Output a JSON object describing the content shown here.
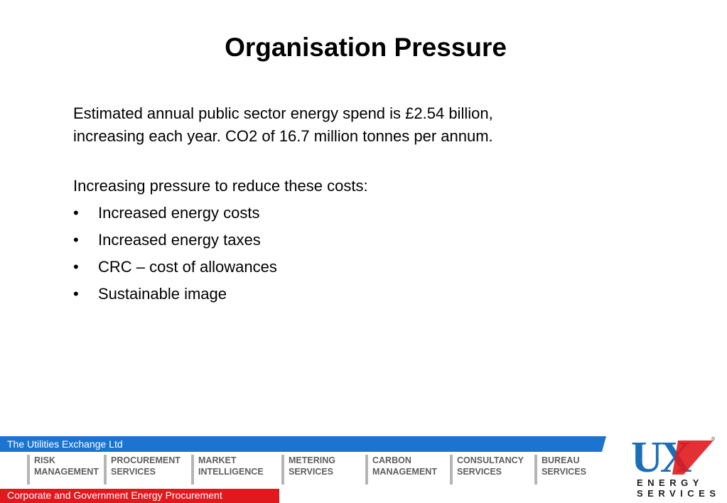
{
  "slide": {
    "title": "Organisation Pressure",
    "intro_line1": "Estimated annual public sector energy spend is £2.54 billion,",
    "intro_line2": "increasing each year. CO2 of 16.7 million tonnes per annum.",
    "lead": "Increasing pressure to reduce these costs:",
    "bullet_char": "•",
    "bullets": [
      "Increased energy costs",
      "Increased energy taxes",
      "CRC – cost of allowances",
      "Sustainable image"
    ]
  },
  "footer": {
    "company": "The Utilities Exchange Ltd",
    "tagline": "Corporate and Government Energy Procurement",
    "services": [
      {
        "line1": "RISK",
        "line2": "MANAGEMENT"
      },
      {
        "line1": "PROCUREMENT",
        "line2": "SERVICES"
      },
      {
        "line1": "MARKET",
        "line2": "INTELLIGENCE"
      },
      {
        "line1": "METERING",
        "line2": "SERVICES"
      },
      {
        "line1": "CARBON",
        "line2": "MANAGEMENT"
      },
      {
        "line1": "CONSULTANCY",
        "line2": "SERVICES"
      },
      {
        "line1": "BUREAU",
        "line2": "SERVICES"
      }
    ],
    "blue_color": "#1b75d0",
    "red_color": "#e0191f"
  },
  "logo": {
    "letters": "UX",
    "registered": "®",
    "word_line1": "ENERGY",
    "word_line2": "SERVICES",
    "blue": "#1b6fb8",
    "red": "#e0191f"
  }
}
